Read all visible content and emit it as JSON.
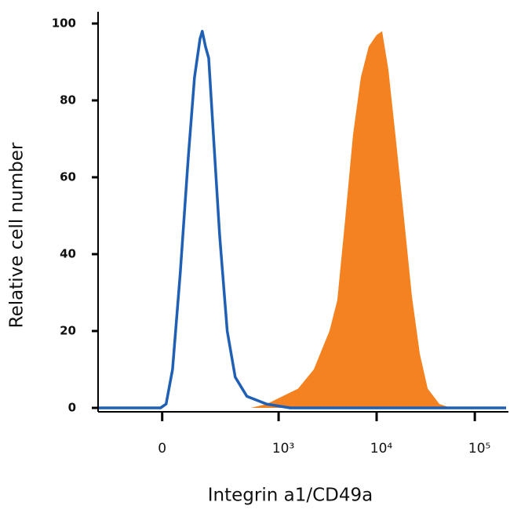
{
  "chart_data": {
    "type": "histogram",
    "x_label": "Integrin a1/CD49a",
    "y_label": "Relative cell number",
    "xscale": "biexponential",
    "xlim": [
      -280,
      220000
    ],
    "xticks": [
      0,
      {
        "value": 1000,
        "label": "10³"
      },
      {
        "value": 10000,
        "label": "10⁴"
      },
      {
        "value": 100000,
        "label": "10⁵"
      }
    ],
    "ylim": [
      0,
      100
    ],
    "yticks": [
      0,
      20,
      40,
      60,
      80,
      100
    ],
    "series": [
      {
        "color": "#f58220",
        "fill": true,
        "x": [
          -280,
          516,
          753,
          1094,
          1582,
          2290,
          3308,
          3980,
          4780,
          5750,
          6910,
          8310,
          9990,
          11370,
          13180,
          15850,
          19060,
          22900,
          27570,
          33150,
          43650,
          57500,
          220000
        ],
        "values": [
          0,
          0,
          1,
          3,
          5,
          10,
          20,
          28,
          49,
          71,
          86,
          94,
          97,
          98,
          88,
          69,
          49,
          29,
          14,
          5,
          1,
          0,
          0
        ]
      },
      {
        "color": "#1f5fb4",
        "fill": false,
        "x": [
          -280,
          -5,
          12,
          32,
          57,
          85,
          109,
          132,
          142,
          157,
          173,
          198,
          235,
          287,
          351,
          469,
          753,
          1315,
          208000
        ],
        "values": [
          0,
          0,
          1,
          10,
          35,
          65,
          86,
          96,
          98,
          94,
          91,
          71,
          45,
          20,
          8,
          3,
          1,
          0,
          0
        ]
      }
    ]
  }
}
